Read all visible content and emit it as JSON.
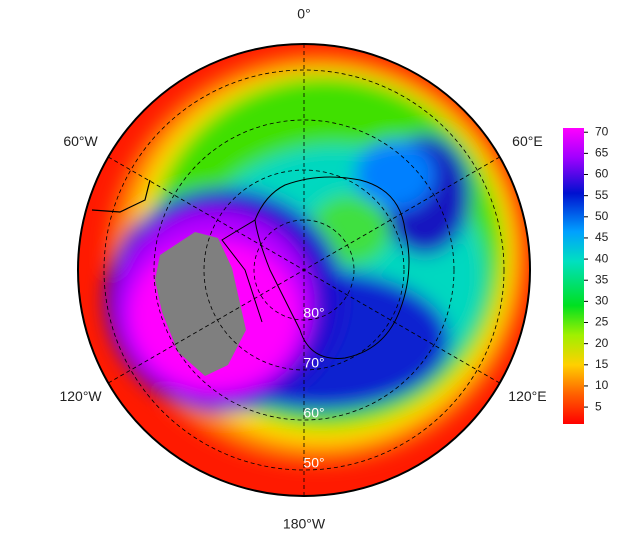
{
  "map": {
    "longitude_labels": [
      "0°",
      "60°E",
      "120°E",
      "180°W",
      "120°W",
      "60°W"
    ],
    "latitude_labels": [
      "80°",
      "70°",
      "60°",
      "50°"
    ]
  },
  "colorbar": {
    "range": [
      1,
      71
    ],
    "ticks": [
      5,
      10,
      15,
      20,
      25,
      30,
      35,
      40,
      45,
      50,
      55,
      60,
      65,
      70
    ]
  }
}
